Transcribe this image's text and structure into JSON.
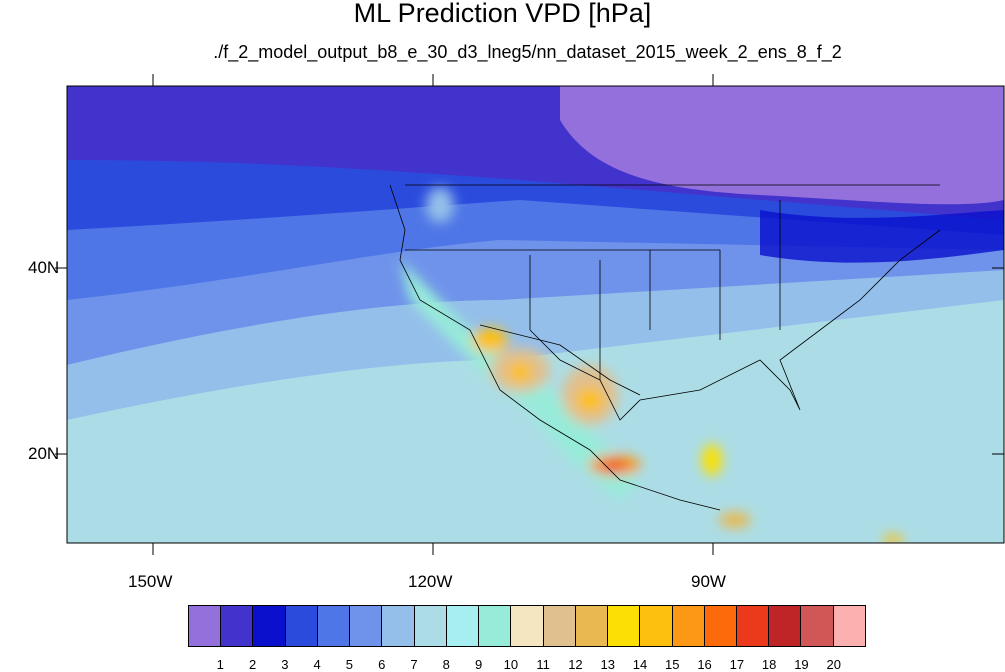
{
  "title": "ML Prediction VPD [hPa]",
  "subtitle": "./f_2_model_output_b8_e_30_d3_lneg5/nn_dataset_2015_week_2_ens_8_f_2",
  "lat_labels": [
    "40N",
    "20N"
  ],
  "lon_labels": [
    "150W",
    "120W",
    "90W"
  ],
  "colorbar": {
    "labels": [
      "1",
      "2",
      "3",
      "4",
      "5",
      "6",
      "7",
      "8",
      "9",
      "10",
      "11",
      "12",
      "13",
      "14",
      "15",
      "16",
      "17",
      "18",
      "19",
      "20"
    ],
    "colors": [
      "#9370db",
      "#4233cc",
      "#0a10cc",
      "#2b4bdd",
      "#4e76e6",
      "#6f93ea",
      "#94bfea",
      "#acdde6",
      "#a6eef0",
      "#97ebd9",
      "#f4e6c0",
      "#e0c08f",
      "#e9b851",
      "#fbe006",
      "#fdc00f",
      "#fc9815",
      "#fc6a0c",
      "#ea3a1b",
      "#bf2527",
      "#d15656",
      "#fcb0b0"
    ]
  },
  "icons": {
    "map": "map-of-north-america-vpd"
  }
}
